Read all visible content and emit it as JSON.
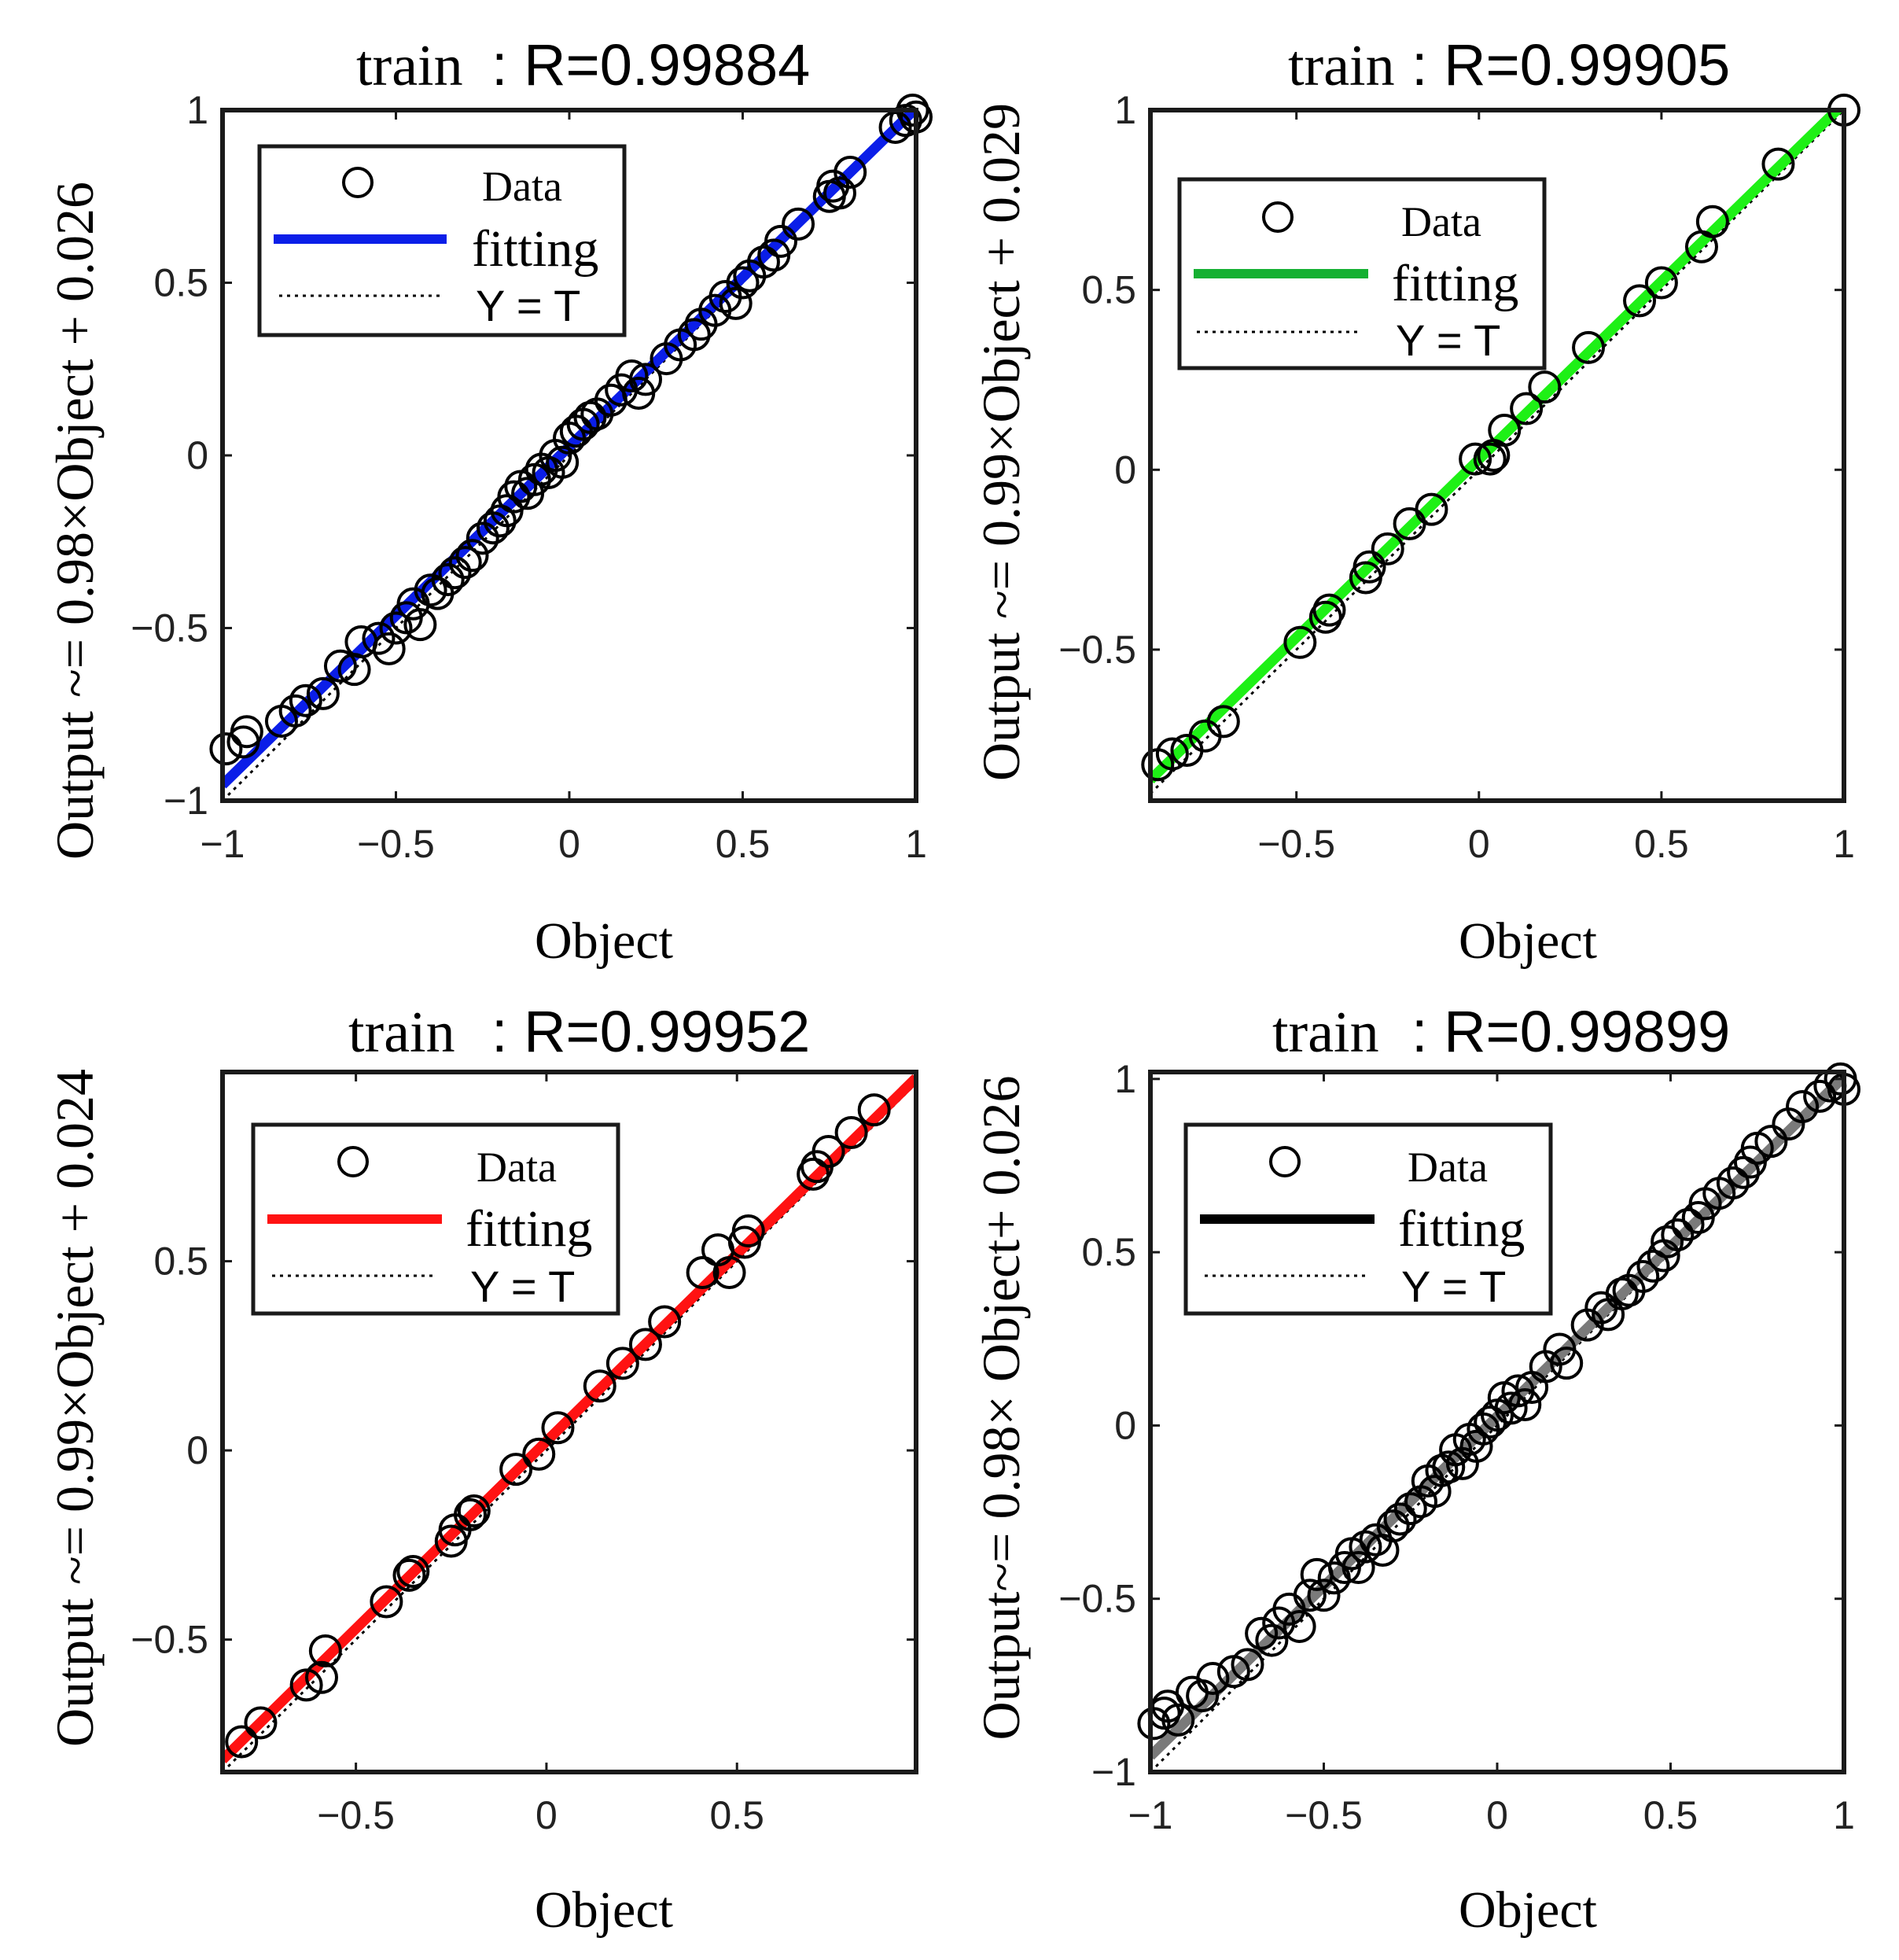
{
  "chart_data": [
    {
      "type": "scatter",
      "title_prefix": "train",
      "title_value": ": R=0.99884",
      "xlabel": "Object",
      "ylabel": "Output ~= 0.98×Object + 0.026",
      "xlim": [
        -1,
        1
      ],
      "ylim": [
        -1,
        1
      ],
      "xticks": [
        -1,
        -0.5,
        0,
        0.5,
        1
      ],
      "xtick_labels": [
        "−1",
        "−0.5",
        "0",
        "0.5",
        "1"
      ],
      "yticks": [
        -1,
        -0.5,
        0,
        0.5,
        1
      ],
      "ytick_labels": [
        "−1",
        "−0.5",
        "0",
        "0.5",
        "1"
      ],
      "legend": {
        "data": "Data",
        "fit": "fitting",
        "ref": "Y = T"
      },
      "fit": {
        "slope": 0.98,
        "intercept": 0.026,
        "color": "#0b1ee8",
        "range": [
          -1,
          1
        ]
      },
      "ref_color": "#000000",
      "points": [
        [
          -0.99,
          -0.85
        ],
        [
          -0.94,
          -0.83
        ],
        [
          -0.93,
          -0.8
        ],
        [
          -0.83,
          -0.77
        ],
        [
          -0.79,
          -0.74
        ],
        [
          -0.76,
          -0.71
        ],
        [
          -0.71,
          -0.69
        ],
        [
          -0.66,
          -0.61
        ],
        [
          -0.62,
          -0.62
        ],
        [
          -0.6,
          -0.54
        ],
        [
          -0.55,
          -0.53
        ],
        [
          -0.52,
          -0.56
        ],
        [
          -0.5,
          -0.5
        ],
        [
          -0.47,
          -0.47
        ],
        [
          -0.45,
          -0.43
        ],
        [
          -0.43,
          -0.49
        ],
        [
          -0.4,
          -0.39
        ],
        [
          -0.38,
          -0.4
        ],
        [
          -0.35,
          -0.36
        ],
        [
          -0.33,
          -0.34
        ],
        [
          -0.3,
          -0.31
        ],
        [
          -0.28,
          -0.29
        ],
        [
          -0.25,
          -0.24
        ],
        [
          -0.22,
          -0.21
        ],
        [
          -0.2,
          -0.19
        ],
        [
          -0.18,
          -0.16
        ],
        [
          -0.16,
          -0.12
        ],
        [
          -0.14,
          -0.09
        ],
        [
          -0.12,
          -0.11
        ],
        [
          -0.1,
          -0.07
        ],
        [
          -0.08,
          -0.04
        ],
        [
          -0.06,
          -0.05
        ],
        [
          -0.04,
          0.0
        ],
        [
          -0.02,
          -0.02
        ],
        [
          0.0,
          0.05
        ],
        [
          0.02,
          0.07
        ],
        [
          0.04,
          0.09
        ],
        [
          0.06,
          0.11
        ],
        [
          0.08,
          0.12
        ],
        [
          0.12,
          0.16
        ],
        [
          0.15,
          0.19
        ],
        [
          0.18,
          0.23
        ],
        [
          0.2,
          0.18
        ],
        [
          0.22,
          0.22
        ],
        [
          0.28,
          0.28
        ],
        [
          0.32,
          0.32
        ],
        [
          0.36,
          0.35
        ],
        [
          0.38,
          0.38
        ],
        [
          0.42,
          0.42
        ],
        [
          0.45,
          0.46
        ],
        [
          0.48,
          0.44
        ],
        [
          0.5,
          0.5
        ],
        [
          0.52,
          0.52
        ],
        [
          0.56,
          0.56
        ],
        [
          0.59,
          0.58
        ],
        [
          0.61,
          0.62
        ],
        [
          0.66,
          0.67
        ],
        [
          0.75,
          0.75
        ],
        [
          0.76,
          0.78
        ],
        [
          0.78,
          0.76
        ],
        [
          0.81,
          0.82
        ],
        [
          0.94,
          0.95
        ],
        [
          0.97,
          0.97
        ],
        [
          0.99,
          1.0
        ],
        [
          1.0,
          0.98
        ]
      ]
    },
    {
      "type": "scatter",
      "title_prefix": "train",
      "title_value": ": R=0.99905",
      "xlabel": "Object",
      "ylabel": "Output ~= 0.99×Object + 0.029",
      "xlim": [
        -0.9,
        1
      ],
      "ylim": [
        -0.92,
        1
      ],
      "xticks": [
        -0.5,
        0,
        0.5,
        1
      ],
      "xtick_labels": [
        "−0.5",
        "0",
        "0.5",
        "1"
      ],
      "yticks": [
        -0.5,
        0,
        0.5,
        1
      ],
      "ytick_labels": [
        "−0.5",
        "0",
        "0.5",
        "1"
      ],
      "legend": {
        "data": "Data",
        "fit": "fitting",
        "ref": "Y = T"
      },
      "fit": {
        "slope": 0.99,
        "intercept": 0.029,
        "color": "#1ef016",
        "range": [
          -0.9,
          1
        ]
      },
      "ref_color": "#000000",
      "points": [
        [
          -0.88,
          -0.82
        ],
        [
          -0.84,
          -0.79
        ],
        [
          -0.8,
          -0.78
        ],
        [
          -0.75,
          -0.74
        ],
        [
          -0.7,
          -0.7
        ],
        [
          -0.49,
          -0.48
        ],
        [
          -0.42,
          -0.41
        ],
        [
          -0.41,
          -0.39
        ],
        [
          -0.31,
          -0.3
        ],
        [
          -0.3,
          -0.27
        ],
        [
          -0.25,
          -0.22
        ],
        [
          -0.19,
          -0.15
        ],
        [
          -0.13,
          -0.11
        ],
        [
          -0.01,
          0.03
        ],
        [
          0.03,
          0.03
        ],
        [
          0.04,
          0.04
        ],
        [
          0.07,
          0.11
        ],
        [
          0.13,
          0.17
        ],
        [
          0.18,
          0.23
        ],
        [
          0.3,
          0.34
        ],
        [
          0.44,
          0.47
        ],
        [
          0.5,
          0.52
        ],
        [
          0.61,
          0.62
        ],
        [
          0.64,
          0.69
        ],
        [
          0.82,
          0.85
        ],
        [
          1.0,
          1.0
        ]
      ]
    },
    {
      "type": "scatter",
      "title_prefix": "train",
      "title_value": ": R=0.99952",
      "xlabel": "Object",
      "ylabel": "Output ~= 0.99×Object + 0.024",
      "xlim": [
        -0.85,
        0.97
      ],
      "ylim": [
        -0.85,
        1.0
      ],
      "xticks": [
        -0.5,
        0,
        0.5
      ],
      "xtick_labels": [
        "−0.5",
        "0",
        "0.5"
      ],
      "yticks": [
        -0.5,
        0,
        0.5
      ],
      "ytick_labels": [
        "−0.5",
        "0",
        "0.5"
      ],
      "legend": {
        "data": "Data",
        "fit": "fitting",
        "ref": "Y = T"
      },
      "fit": {
        "slope": 0.99,
        "intercept": 0.024,
        "color": "#ff1212",
        "range": [
          -0.85,
          0.97
        ]
      },
      "ref_color": "#000000",
      "points": [
        [
          -0.8,
          -0.77
        ],
        [
          -0.75,
          -0.72
        ],
        [
          -0.63,
          -0.62
        ],
        [
          -0.59,
          -0.6
        ],
        [
          -0.58,
          -0.53
        ],
        [
          -0.42,
          -0.4
        ],
        [
          -0.36,
          -0.33
        ],
        [
          -0.35,
          -0.32
        ],
        [
          -0.25,
          -0.24
        ],
        [
          -0.24,
          -0.21
        ],
        [
          -0.2,
          -0.17
        ],
        [
          -0.19,
          -0.16
        ],
        [
          -0.08,
          -0.05
        ],
        [
          -0.02,
          -0.01
        ],
        [
          0.03,
          0.06
        ],
        [
          0.14,
          0.17
        ],
        [
          0.2,
          0.23
        ],
        [
          0.26,
          0.28
        ],
        [
          0.31,
          0.34
        ],
        [
          0.41,
          0.47
        ],
        [
          0.45,
          0.53
        ],
        [
          0.48,
          0.47
        ],
        [
          0.52,
          0.55
        ],
        [
          0.53,
          0.58
        ],
        [
          0.7,
          0.73
        ],
        [
          0.71,
          0.75
        ],
        [
          0.74,
          0.79
        ],
        [
          0.8,
          0.84
        ],
        [
          0.86,
          0.9
        ]
      ]
    },
    {
      "type": "scatter",
      "title_prefix": "train",
      "title_value": ": R=0.99899",
      "xlabel": "Object",
      "ylabel": "Output~= 0.98× Object+ 0.026",
      "xlim": [
        -1,
        1
      ],
      "ylim": [
        -1,
        1.02
      ],
      "xticks": [
        -1,
        -0.5,
        0,
        0.5,
        1
      ],
      "xtick_labels": [
        "−1",
        "−0.5",
        "0",
        "0.5",
        "1"
      ],
      "yticks": [
        -1,
        -0.5,
        0,
        0.5,
        1
      ],
      "ytick_labels": [
        "−1",
        "−0.5",
        "0",
        "0.5",
        "1"
      ],
      "legend": {
        "data": "Data",
        "fit": "fitting",
        "ref": "Y = T"
      },
      "fit": {
        "slope": 0.98,
        "intercept": 0.026,
        "color": "#7a7a7a",
        "range": [
          -1,
          1
        ]
      },
      "legend_fit_color": "#000000",
      "ref_color": "#000000",
      "points": [
        [
          -0.99,
          -0.86
        ],
        [
          -0.96,
          -0.83
        ],
        [
          -0.95,
          -0.81
        ],
        [
          -0.92,
          -0.85
        ],
        [
          -0.88,
          -0.77
        ],
        [
          -0.85,
          -0.78
        ],
        [
          -0.82,
          -0.73
        ],
        [
          -0.76,
          -0.71
        ],
        [
          -0.72,
          -0.69
        ],
        [
          -0.68,
          -0.6
        ],
        [
          -0.65,
          -0.62
        ],
        [
          -0.63,
          -0.57
        ],
        [
          -0.6,
          -0.53
        ],
        [
          -0.57,
          -0.58
        ],
        [
          -0.54,
          -0.49
        ],
        [
          -0.52,
          -0.43
        ],
        [
          -0.5,
          -0.49
        ],
        [
          -0.47,
          -0.44
        ],
        [
          -0.44,
          -0.41
        ],
        [
          -0.42,
          -0.37
        ],
        [
          -0.4,
          -0.41
        ],
        [
          -0.38,
          -0.35
        ],
        [
          -0.35,
          -0.33
        ],
        [
          -0.33,
          -0.36
        ],
        [
          -0.3,
          -0.29
        ],
        [
          -0.28,
          -0.27
        ],
        [
          -0.25,
          -0.24
        ],
        [
          -0.22,
          -0.22
        ],
        [
          -0.2,
          -0.16
        ],
        [
          -0.18,
          -0.19
        ],
        [
          -0.16,
          -0.13
        ],
        [
          -0.14,
          -0.12
        ],
        [
          -0.12,
          -0.07
        ],
        [
          -0.1,
          -0.11
        ],
        [
          -0.08,
          -0.04
        ],
        [
          -0.06,
          -0.06
        ],
        [
          -0.04,
          -0.01
        ],
        [
          -0.02,
          0.01
        ],
        [
          0.0,
          0.03
        ],
        [
          0.02,
          0.08
        ],
        [
          0.04,
          0.05
        ],
        [
          0.06,
          0.1
        ],
        [
          0.08,
          0.06
        ],
        [
          0.1,
          0.11
        ],
        [
          0.14,
          0.17
        ],
        [
          0.18,
          0.22
        ],
        [
          0.2,
          0.18
        ],
        [
          0.26,
          0.29
        ],
        [
          0.3,
          0.34
        ],
        [
          0.32,
          0.32
        ],
        [
          0.36,
          0.38
        ],
        [
          0.38,
          0.39
        ],
        [
          0.42,
          0.43
        ],
        [
          0.45,
          0.46
        ],
        [
          0.48,
          0.49
        ],
        [
          0.49,
          0.53
        ],
        [
          0.52,
          0.55
        ],
        [
          0.55,
          0.58
        ],
        [
          0.58,
          0.6
        ],
        [
          0.6,
          0.64
        ],
        [
          0.64,
          0.67
        ],
        [
          0.68,
          0.7
        ],
        [
          0.71,
          0.73
        ],
        [
          0.73,
          0.76
        ],
        [
          0.75,
          0.8
        ],
        [
          0.79,
          0.82
        ],
        [
          0.84,
          0.87
        ],
        [
          0.88,
          0.92
        ],
        [
          0.93,
          0.95
        ],
        [
          0.96,
          0.98
        ],
        [
          0.99,
          1.0
        ],
        [
          1.0,
          0.97
        ]
      ]
    }
  ]
}
